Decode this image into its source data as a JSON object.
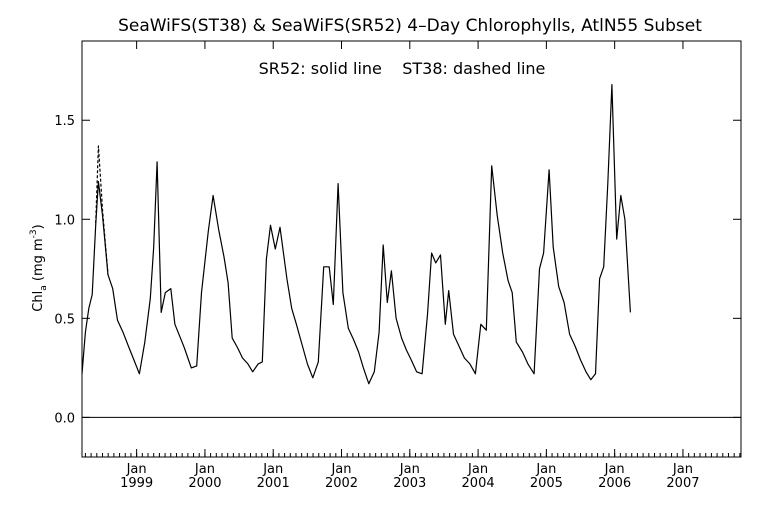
{
  "chart_data": {
    "type": "line",
    "title": "SeaWiFS(ST38) & SeaWiFS(SR52) 4–Day Chlorophylls, AtlN55 Subset",
    "annotation": "SR52: solid line    ST38: dashed line",
    "ylabel_parts": {
      "pre": "Chl",
      "sub": "a",
      "mid": " (mg m",
      "sup": "-3",
      "post": ")"
    },
    "xlim": [
      1998.2,
      2007.85
    ],
    "ylim": [
      -0.2,
      1.9
    ],
    "grid": false,
    "legend": "none",
    "y_ticks": [
      0.0,
      0.5,
      1.0,
      1.5
    ],
    "y_tick_labels": [
      "0.0",
      "0.5",
      "1.0",
      "1.5"
    ],
    "x_ticks": [
      {
        "pos": 1999.0,
        "top": "Jan",
        "bottom": "1999"
      },
      {
        "pos": 2000.0,
        "top": "Jan",
        "bottom": "2000"
      },
      {
        "pos": 2001.0,
        "top": "Jan",
        "bottom": "2001"
      },
      {
        "pos": 2002.0,
        "top": "Jan",
        "bottom": "2002"
      },
      {
        "pos": 2003.0,
        "top": "Jan",
        "bottom": "2003"
      },
      {
        "pos": 2004.0,
        "top": "Jan",
        "bottom": "2004"
      },
      {
        "pos": 2005.0,
        "top": "Jan",
        "bottom": "2005"
      },
      {
        "pos": 2006.0,
        "top": "Jan",
        "bottom": "2006"
      },
      {
        "pos": 2007.0,
        "top": "Jan",
        "bottom": "2007"
      }
    ],
    "reference_line_y": 0.0,
    "series": [
      {
        "name": "SR52",
        "style": "solid",
        "color": "#000000",
        "points": [
          [
            1998.2,
            0.22
          ],
          [
            1998.25,
            0.43
          ],
          [
            1998.3,
            0.55
          ],
          [
            1998.35,
            0.62
          ],
          [
            1998.4,
            0.97
          ],
          [
            1998.44,
            1.19
          ],
          [
            1998.5,
            1.02
          ],
          [
            1998.58,
            0.72
          ],
          [
            1998.65,
            0.65
          ],
          [
            1998.72,
            0.49
          ],
          [
            1998.8,
            0.43
          ],
          [
            1998.88,
            0.36
          ],
          [
            1998.96,
            0.29
          ],
          [
            1999.04,
            0.22
          ],
          [
            1999.12,
            0.38
          ],
          [
            1999.2,
            0.6
          ],
          [
            1999.25,
            0.86
          ],
          [
            1999.3,
            1.29
          ],
          [
            1999.36,
            0.53
          ],
          [
            1999.42,
            0.63
          ],
          [
            1999.5,
            0.65
          ],
          [
            1999.56,
            0.47
          ],
          [
            1999.63,
            0.41
          ],
          [
            1999.7,
            0.35
          ],
          [
            1999.8,
            0.25
          ],
          [
            1999.88,
            0.26
          ],
          [
            1999.95,
            0.63
          ],
          [
            2000.05,
            0.94
          ],
          [
            2000.12,
            1.12
          ],
          [
            2000.2,
            0.95
          ],
          [
            2000.28,
            0.81
          ],
          [
            2000.34,
            0.68
          ],
          [
            2000.4,
            0.4
          ],
          [
            2000.48,
            0.35
          ],
          [
            2000.55,
            0.3
          ],
          [
            2000.63,
            0.27
          ],
          [
            2000.7,
            0.23
          ],
          [
            2000.78,
            0.27
          ],
          [
            2000.84,
            0.28
          ],
          [
            2000.9,
            0.8
          ],
          [
            2000.96,
            0.97
          ],
          [
            2001.03,
            0.85
          ],
          [
            2001.1,
            0.96
          ],
          [
            2001.2,
            0.7
          ],
          [
            2001.27,
            0.55
          ],
          [
            2001.34,
            0.47
          ],
          [
            2001.42,
            0.37
          ],
          [
            2001.5,
            0.27
          ],
          [
            2001.58,
            0.2
          ],
          [
            2001.66,
            0.28
          ],
          [
            2001.74,
            0.76
          ],
          [
            2001.82,
            0.76
          ],
          [
            2001.88,
            0.57
          ],
          [
            2001.95,
            1.18
          ],
          [
            2002.02,
            0.63
          ],
          [
            2002.1,
            0.45
          ],
          [
            2002.18,
            0.39
          ],
          [
            2002.25,
            0.33
          ],
          [
            2002.32,
            0.25
          ],
          [
            2002.4,
            0.17
          ],
          [
            2002.48,
            0.23
          ],
          [
            2002.55,
            0.43
          ],
          [
            2002.61,
            0.87
          ],
          [
            2002.67,
            0.58
          ],
          [
            2002.73,
            0.74
          ],
          [
            2002.8,
            0.5
          ],
          [
            2002.88,
            0.4
          ],
          [
            2002.95,
            0.34
          ],
          [
            2003.02,
            0.29
          ],
          [
            2003.1,
            0.23
          ],
          [
            2003.18,
            0.22
          ],
          [
            2003.26,
            0.52
          ],
          [
            2003.32,
            0.83
          ],
          [
            2003.38,
            0.78
          ],
          [
            2003.45,
            0.82
          ],
          [
            2003.52,
            0.47
          ],
          [
            2003.57,
            0.64
          ],
          [
            2003.64,
            0.42
          ],
          [
            2003.72,
            0.36
          ],
          [
            2003.8,
            0.3
          ],
          [
            2003.88,
            0.27
          ],
          [
            2003.96,
            0.22
          ],
          [
            2004.04,
            0.47
          ],
          [
            2004.12,
            0.44
          ],
          [
            2004.2,
            1.27
          ],
          [
            2004.28,
            1.02
          ],
          [
            2004.36,
            0.83
          ],
          [
            2004.44,
            0.69
          ],
          [
            2004.5,
            0.63
          ],
          [
            2004.56,
            0.38
          ],
          [
            2004.65,
            0.33
          ],
          [
            2004.73,
            0.27
          ],
          [
            2004.82,
            0.22
          ],
          [
            2004.9,
            0.75
          ],
          [
            2004.96,
            0.83
          ],
          [
            2005.04,
            1.25
          ],
          [
            2005.1,
            0.86
          ],
          [
            2005.18,
            0.66
          ],
          [
            2005.26,
            0.58
          ],
          [
            2005.34,
            0.42
          ],
          [
            2005.42,
            0.36
          ],
          [
            2005.5,
            0.29
          ],
          [
            2005.58,
            0.23
          ],
          [
            2005.65,
            0.19
          ],
          [
            2005.72,
            0.22
          ],
          [
            2005.78,
            0.7
          ],
          [
            2005.84,
            0.76
          ],
          [
            2005.9,
            1.18
          ],
          [
            2005.96,
            1.68
          ],
          [
            2006.03,
            0.9
          ],
          [
            2006.09,
            1.12
          ],
          [
            2006.15,
            1.0
          ],
          [
            2006.23,
            0.53
          ]
        ]
      },
      {
        "name": "ST38",
        "style": "dashed",
        "color": "#000000",
        "points": [
          [
            1998.4,
            0.98
          ],
          [
            1998.44,
            1.37
          ],
          [
            1998.5,
            1.05
          ],
          [
            1998.58,
            0.72
          ]
        ]
      }
    ]
  }
}
